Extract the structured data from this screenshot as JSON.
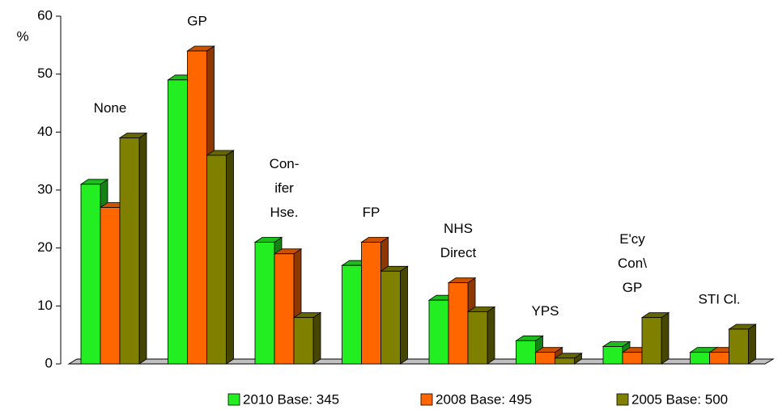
{
  "chart_data": {
    "type": "bar3d",
    "y_label": "%",
    "categories": [
      [
        "None"
      ],
      [
        "GP"
      ],
      [
        "Con-",
        "ifer",
        "Hse."
      ],
      [
        "FP"
      ],
      [
        "NHS",
        "Direct"
      ],
      [
        "YPS"
      ],
      [
        "E'cy",
        "Con\\",
        "GP"
      ],
      [
        "STI Cl."
      ]
    ],
    "series": [
      {
        "name": "2010 Base: 345",
        "color": "#22ee22",
        "values": [
          31,
          49,
          21,
          17,
          11,
          4,
          3,
          2
        ]
      },
      {
        "name": "2008 Base: 495",
        "color": "#ff6600",
        "values": [
          27,
          54,
          19,
          21,
          14,
          2,
          2,
          2
        ]
      },
      {
        "name": "2005 Base: 500",
        "color": "#808000",
        "values": [
          39,
          36,
          8,
          16,
          9,
          1,
          8,
          6
        ]
      }
    ],
    "ylim": [
      0,
      60
    ],
    "yticks": [
      0,
      10,
      20,
      30,
      40,
      50,
      60
    ],
    "legend": "bottom"
  }
}
